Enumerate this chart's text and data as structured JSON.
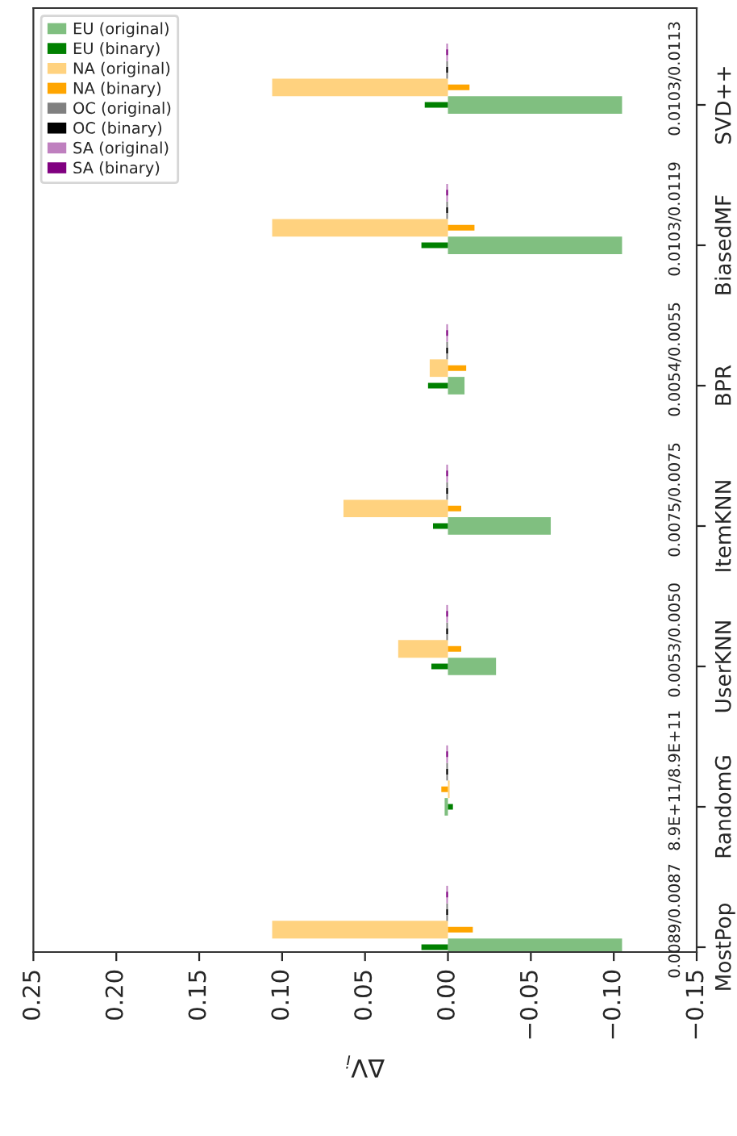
{
  "chart_data": {
    "type": "bar",
    "orientation": "horizontal",
    "xlabel": "ΔV$_{i}$",
    "categories": [
      "SVD++",
      "BiasedMF",
      "BPR",
      "ItemKNN",
      "UserKNN",
      "RandomG",
      "MostPop"
    ],
    "series": [
      {
        "name": "EU (original)",
        "color": "#80bf80",
        "values": [
          -0.105,
          -0.105,
          -0.01,
          -0.062,
          -0.029,
          0.002,
          -0.105
        ]
      },
      {
        "name": "EU (binary)",
        "color": "#008000",
        "values": [
          0.014,
          0.016,
          0.012,
          0.009,
          0.01,
          -0.003,
          0.016
        ]
      },
      {
        "name": "NA (original)",
        "color": "#ffd27f",
        "values": [
          0.106,
          0.106,
          0.011,
          0.063,
          0.03,
          -0.001,
          0.106
        ]
      },
      {
        "name": "NA (binary)",
        "color": "#ffa500",
        "values": [
          -0.013,
          -0.016,
          -0.011,
          -0.008,
          -0.008,
          0.004,
          -0.015
        ]
      },
      {
        "name": "OC (original)",
        "color": "#808080",
        "values": [
          0.001,
          0.001,
          0.001,
          0.001,
          0.001,
          0.001,
          0.001
        ]
      },
      {
        "name": "OC (binary)",
        "color": "#000000",
        "values": [
          0.001,
          0.001,
          0.001,
          0.001,
          0.001,
          0.001,
          0.001
        ]
      },
      {
        "name": "SA (original)",
        "color": "#bf80bf",
        "values": [
          0.001,
          0.001,
          0.001,
          0.001,
          0.001,
          0.001,
          0.001
        ]
      },
      {
        "name": "SA (binary)",
        "color": "#800080",
        "values": [
          0.001,
          0.001,
          0.001,
          0.001,
          0.001,
          0.001,
          0.001
        ]
      }
    ],
    "annotations": [
      "0.0103/0.0113",
      "0.0103/0.0119",
      "0.0054/0.0055",
      "0.0075/0.0075",
      "0.0053/0.0050",
      "8.9E+11/8.9E+11",
      "0.0089/0.0087"
    ],
    "xlim": [
      0.25,
      -0.15
    ],
    "xticks": [
      {
        "value": 0.25,
        "label": "0.25"
      },
      {
        "value": 0.2,
        "label": "0.20"
      },
      {
        "value": 0.15,
        "label": "0.15"
      },
      {
        "value": 0.1,
        "label": "0.10"
      },
      {
        "value": 0.05,
        "label": "0.05"
      },
      {
        "value": 0.0,
        "label": "0.00"
      },
      {
        "value": -0.05,
        "label": "−0.05"
      },
      {
        "value": -0.1,
        "label": "−0.10"
      },
      {
        "value": -0.15,
        "label": "−0.15"
      }
    ],
    "legend": "top left",
    "grid": false
  }
}
